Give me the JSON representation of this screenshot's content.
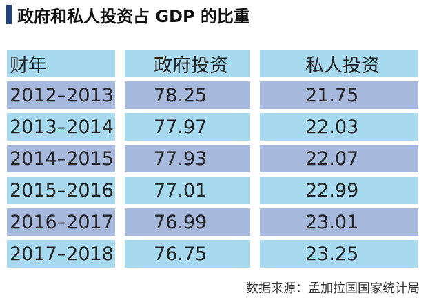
{
  "title": "政府和私人投资占 GDP 的比重",
  "source": "数据来源：孟加拉国国家统计局",
  "colors": {
    "title_bar": "#1f3f7f",
    "row_light": "#a7d9ef",
    "row_dark": "#a8b9de"
  },
  "chart_data": {
    "type": "table",
    "title": "政府和私人投资占 GDP 的比重",
    "columns": [
      "财年",
      "政府投资",
      "私人投资"
    ],
    "rows": [
      [
        "2012–2013",
        "78.25",
        "21.75"
      ],
      [
        "2013–2014",
        "77.97",
        "22.03"
      ],
      [
        "2014–2015",
        "77.93",
        "22.07"
      ],
      [
        "2015–2016",
        "77.01",
        "22.99"
      ],
      [
        "2016–2017",
        "76.99",
        "23.01"
      ],
      [
        "2017–2018",
        "76.75",
        "23.25"
      ]
    ]
  }
}
